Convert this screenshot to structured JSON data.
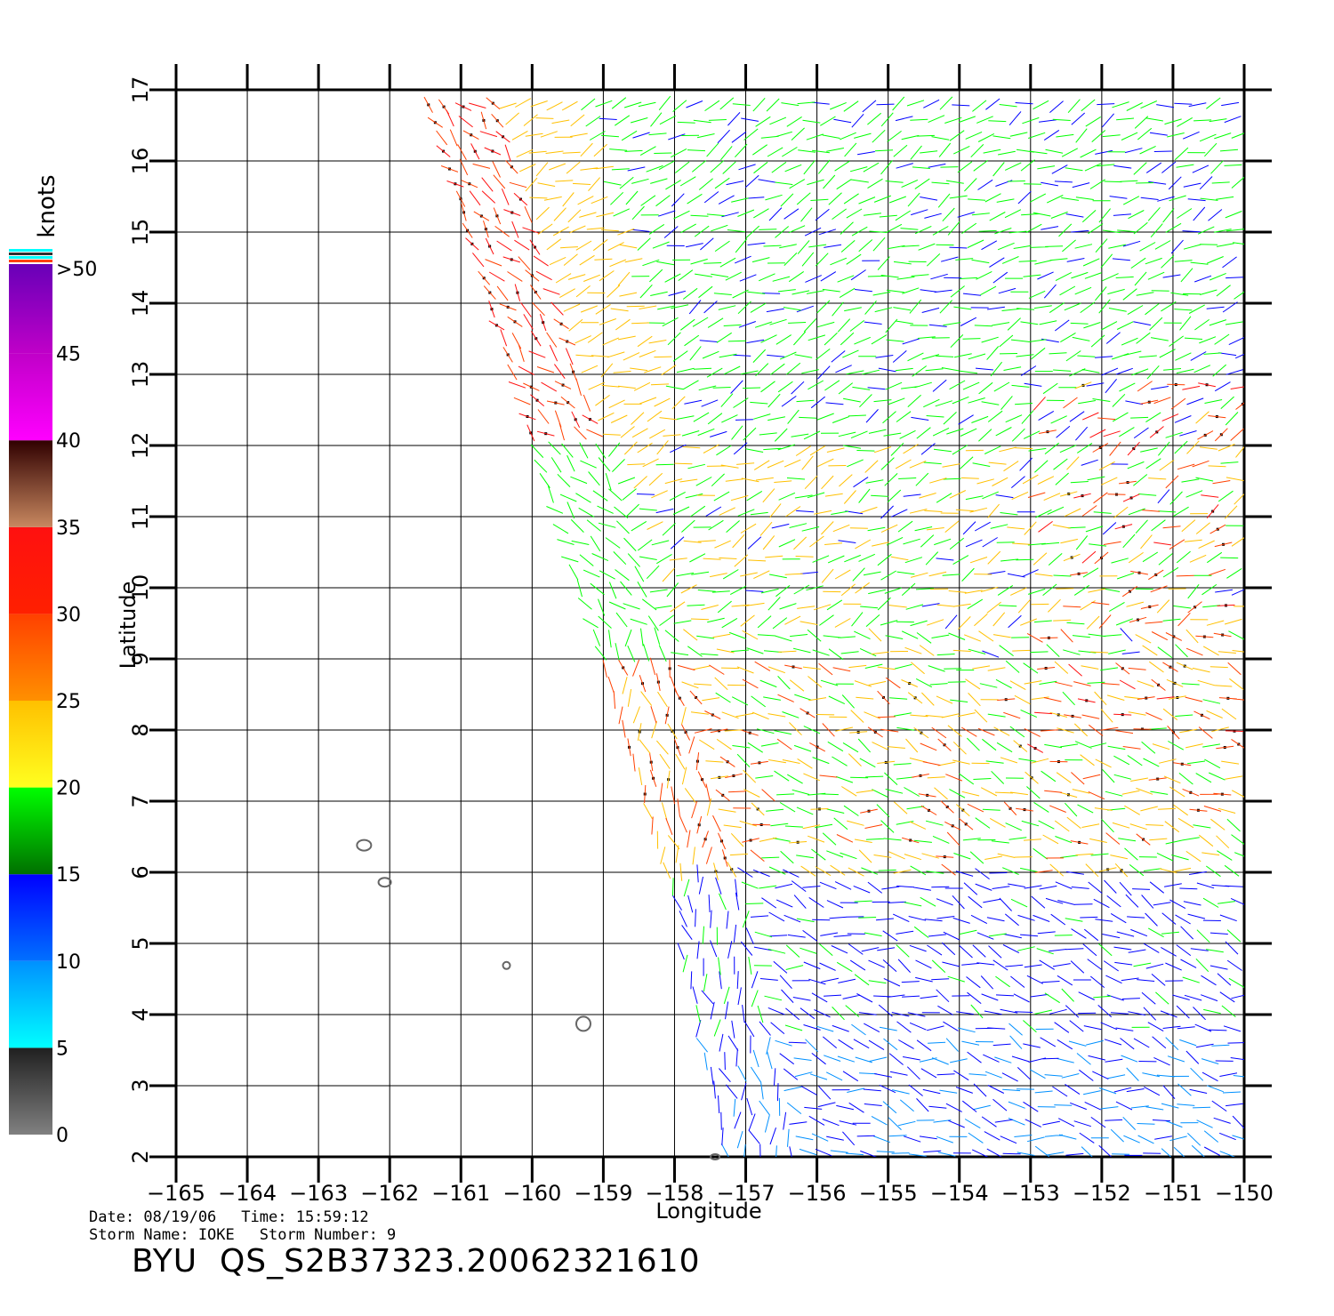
{
  "map": {
    "x_axis_label": "Longitude",
    "y_axis_label": "Latitude",
    "longitude_ticks": [
      "−165",
      "−164",
      "−163",
      "−162",
      "−161",
      "−160",
      "−159",
      "−158",
      "−157",
      "−156",
      "−155",
      "−154",
      "−153",
      "−152",
      "−151",
      "−150"
    ],
    "latitude_ticks": [
      "2",
      "3",
      "4",
      "5",
      "6",
      "7",
      "8",
      "9",
      "10",
      "11",
      "12",
      "13",
      "14",
      "15",
      "16",
      "17"
    ],
    "lon_range": [
      -165,
      -150
    ],
    "lat_range": [
      2,
      17
    ]
  },
  "legend": {
    "title": "knots",
    "labels": [
      "0",
      "5",
      "10",
      "15",
      "20",
      "25",
      "30",
      "35",
      "40",
      "45",
      ">50"
    ],
    "bands": [
      {
        "from": 0,
        "to": 5,
        "colors": [
          "#808080",
          "#202020"
        ]
      },
      {
        "from": 5,
        "to": 10,
        "colors": [
          "#00ffff",
          "#0090ff"
        ]
      },
      {
        "from": 10,
        "to": 15,
        "colors": [
          "#0070ff",
          "#0000ff"
        ]
      },
      {
        "from": 15,
        "to": 20,
        "colors": [
          "#007000",
          "#00ff00"
        ]
      },
      {
        "from": 20,
        "to": 25,
        "colors": [
          "#ffff20",
          "#ffc000"
        ]
      },
      {
        "from": 25,
        "to": 30,
        "colors": [
          "#ff9000",
          "#ff4000"
        ]
      },
      {
        "from": 30,
        "to": 35,
        "colors": [
          "#ff2000",
          "#ff1010"
        ]
      },
      {
        "from": 35,
        "to": 40,
        "colors": [
          "#c88860",
          "#300000"
        ]
      },
      {
        "from": 40,
        "to": 45,
        "colors": [
          "#ff00ff",
          "#c000c8"
        ]
      },
      {
        "from": 45,
        "to": 50,
        "colors": [
          "#c000c8",
          "#6a00b8"
        ]
      }
    ]
  },
  "metadata": {
    "date_label": "Date: 08/19/06",
    "time_label": "Time: 15:59:12",
    "storm_name_label": "Storm Name: IOKE",
    "storm_number_label": "Storm Number: 9",
    "product_id": "BYU  QS_S2B37323.20062321610"
  }
}
